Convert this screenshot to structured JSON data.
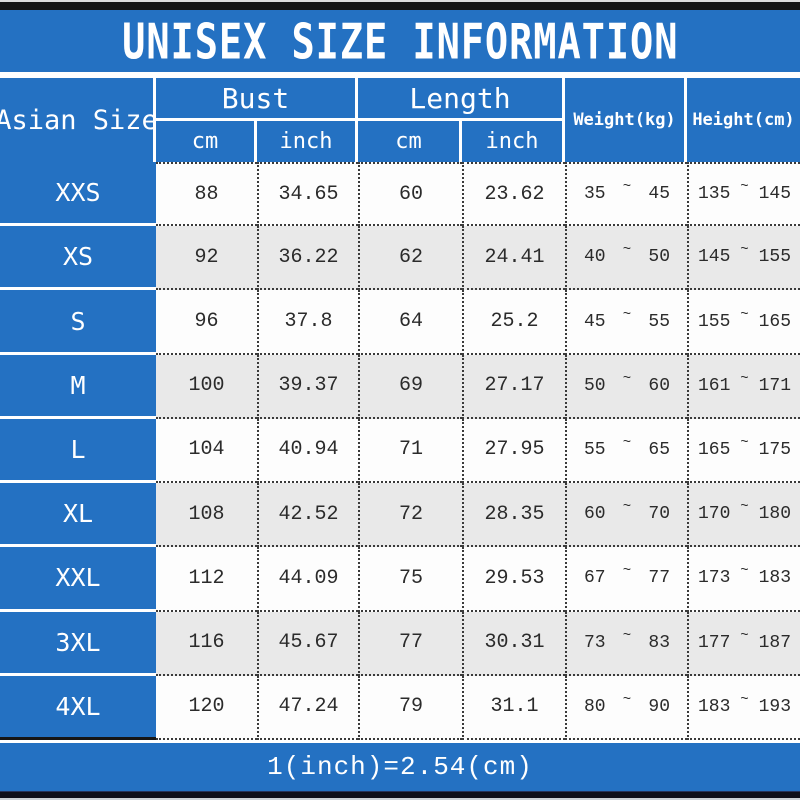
{
  "colors": {
    "accent_blue": "#2471c2",
    "alt_row": "#e9e9e9",
    "bar_black": "#141414",
    "ink": "#2b2b2b"
  },
  "chart_data": {
    "type": "table",
    "title": "UNISEX SIZE INFORMATION",
    "footer_note": "1(inch)=2.54(cm)",
    "size_column_header": "Asian Size",
    "groups": [
      {
        "label": "Bust",
        "units": [
          "cm",
          "inch"
        ]
      },
      {
        "label": "Length",
        "units": [
          "cm",
          "inch"
        ]
      }
    ],
    "scalar_headers": [
      "Weight(kg)",
      "Height(cm)"
    ],
    "range_separator": "~",
    "rows": [
      {
        "size": "XXS",
        "bust_cm": "88",
        "bust_inch": "34.65",
        "len_cm": "60",
        "len_inch": "23.62",
        "weight_min": "35",
        "weight_max": "45",
        "height_min": "135",
        "height_max": "145"
      },
      {
        "size": "XS",
        "bust_cm": "92",
        "bust_inch": "36.22",
        "len_cm": "62",
        "len_inch": "24.41",
        "weight_min": "40",
        "weight_max": "50",
        "height_min": "145",
        "height_max": "155"
      },
      {
        "size": "S",
        "bust_cm": "96",
        "bust_inch": "37.8",
        "len_cm": "64",
        "len_inch": "25.2",
        "weight_min": "45",
        "weight_max": "55",
        "height_min": "155",
        "height_max": "165"
      },
      {
        "size": "M",
        "bust_cm": "100",
        "bust_inch": "39.37",
        "len_cm": "69",
        "len_inch": "27.17",
        "weight_min": "50",
        "weight_max": "60",
        "height_min": "161",
        "height_max": "171"
      },
      {
        "size": "L",
        "bust_cm": "104",
        "bust_inch": "40.94",
        "len_cm": "71",
        "len_inch": "27.95",
        "weight_min": "55",
        "weight_max": "65",
        "height_min": "165",
        "height_max": "175"
      },
      {
        "size": "XL",
        "bust_cm": "108",
        "bust_inch": "42.52",
        "len_cm": "72",
        "len_inch": "28.35",
        "weight_min": "60",
        "weight_max": "70",
        "height_min": "170",
        "height_max": "180"
      },
      {
        "size": "XXL",
        "bust_cm": "112",
        "bust_inch": "44.09",
        "len_cm": "75",
        "len_inch": "29.53",
        "weight_min": "67",
        "weight_max": "77",
        "height_min": "173",
        "height_max": "183"
      },
      {
        "size": "3XL",
        "bust_cm": "116",
        "bust_inch": "45.67",
        "len_cm": "77",
        "len_inch": "30.31",
        "weight_min": "73",
        "weight_max": "83",
        "height_min": "177",
        "height_max": "187"
      },
      {
        "size": "4XL",
        "bust_cm": "120",
        "bust_inch": "47.24",
        "len_cm": "79",
        "len_inch": "31.1",
        "weight_min": "80",
        "weight_max": "90",
        "height_min": "183",
        "height_max": "193"
      }
    ]
  }
}
